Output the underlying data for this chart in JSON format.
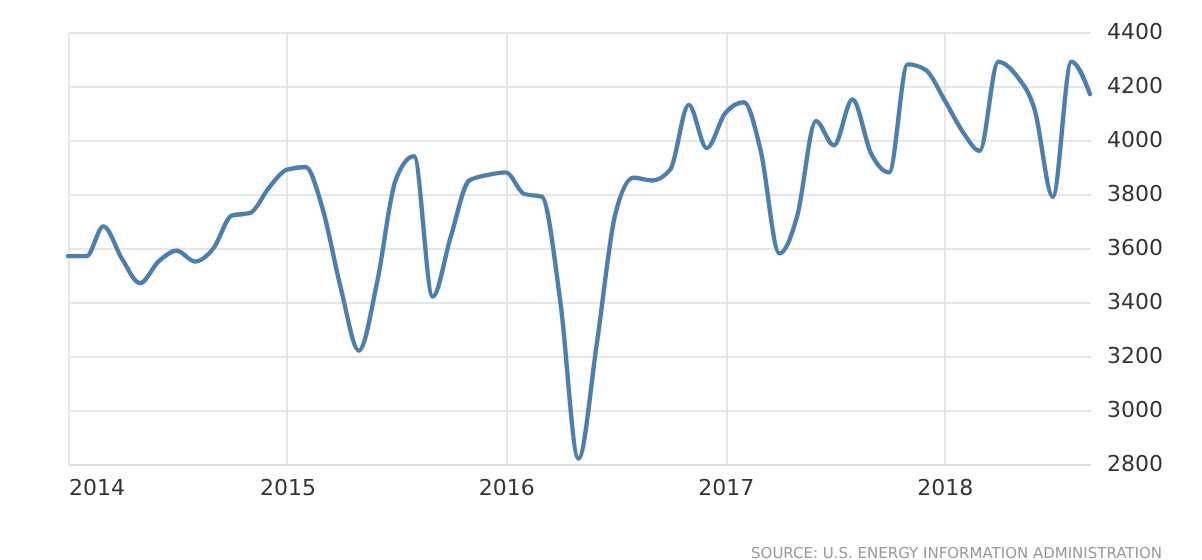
{
  "chart_data": {
    "type": "line",
    "annotations": [
      "SOURCE: U.S. ENERGY INFORMATION ADMINISTRATION"
    ],
    "x": [
      "2014-01",
      "2014-02",
      "2014-03",
      "2014-04",
      "2014-05",
      "2014-06",
      "2014-07",
      "2014-08",
      "2014-09",
      "2014-10",
      "2014-11",
      "2014-12",
      "2015-01",
      "2015-02",
      "2015-03",
      "2015-04",
      "2015-05",
      "2015-06",
      "2015-07",
      "2015-08",
      "2015-09",
      "2015-10",
      "2015-11",
      "2015-12",
      "2016-01",
      "2016-02",
      "2016-03",
      "2016-04",
      "2016-05",
      "2016-06",
      "2016-07",
      "2016-08",
      "2016-09",
      "2016-10",
      "2016-11",
      "2016-12",
      "2017-01",
      "2017-02",
      "2017-03",
      "2017-04",
      "2017-05",
      "2017-06",
      "2017-07",
      "2017-08",
      "2017-09",
      "2017-10",
      "2017-11",
      "2017-12",
      "2018-01",
      "2018-02",
      "2018-03",
      "2018-04",
      "2018-05",
      "2018-06",
      "2018-07",
      "2018-08",
      "2018-09"
    ],
    "series": [
      {
        "color": "#4a7fb0",
        "values": [
          3570,
          3570,
          3680,
          3560,
          3470,
          3550,
          3590,
          3550,
          3600,
          3720,
          3730,
          3820,
          3890,
          3900,
          3750,
          3450,
          3220,
          3480,
          3850,
          3940,
          3420,
          3640,
          3850,
          3870,
          3880,
          3800,
          3790,
          3400,
          2820,
          3250,
          3720,
          3860,
          3850,
          3890,
          4130,
          3970,
          4100,
          4140,
          3960,
          3580,
          3720,
          4070,
          3980,
          4150,
          3950,
          3880,
          4280,
          4260,
          4150,
          4030,
          3960,
          4290,
          4240,
          4110,
          3790,
          4290,
          4170
        ]
      }
    ],
    "xlim": [
      "2014-01",
      "2018-09"
    ],
    "xticks": [
      "2014",
      "2015",
      "2016",
      "2017",
      "2018"
    ],
    "ylim": [
      2800,
      4400
    ],
    "yticks": [
      2800,
      3000,
      3200,
      3400,
      3600,
      3800,
      4000,
      4200,
      4400
    ],
    "grid": true,
    "marker": "none",
    "line_style": "solid"
  }
}
